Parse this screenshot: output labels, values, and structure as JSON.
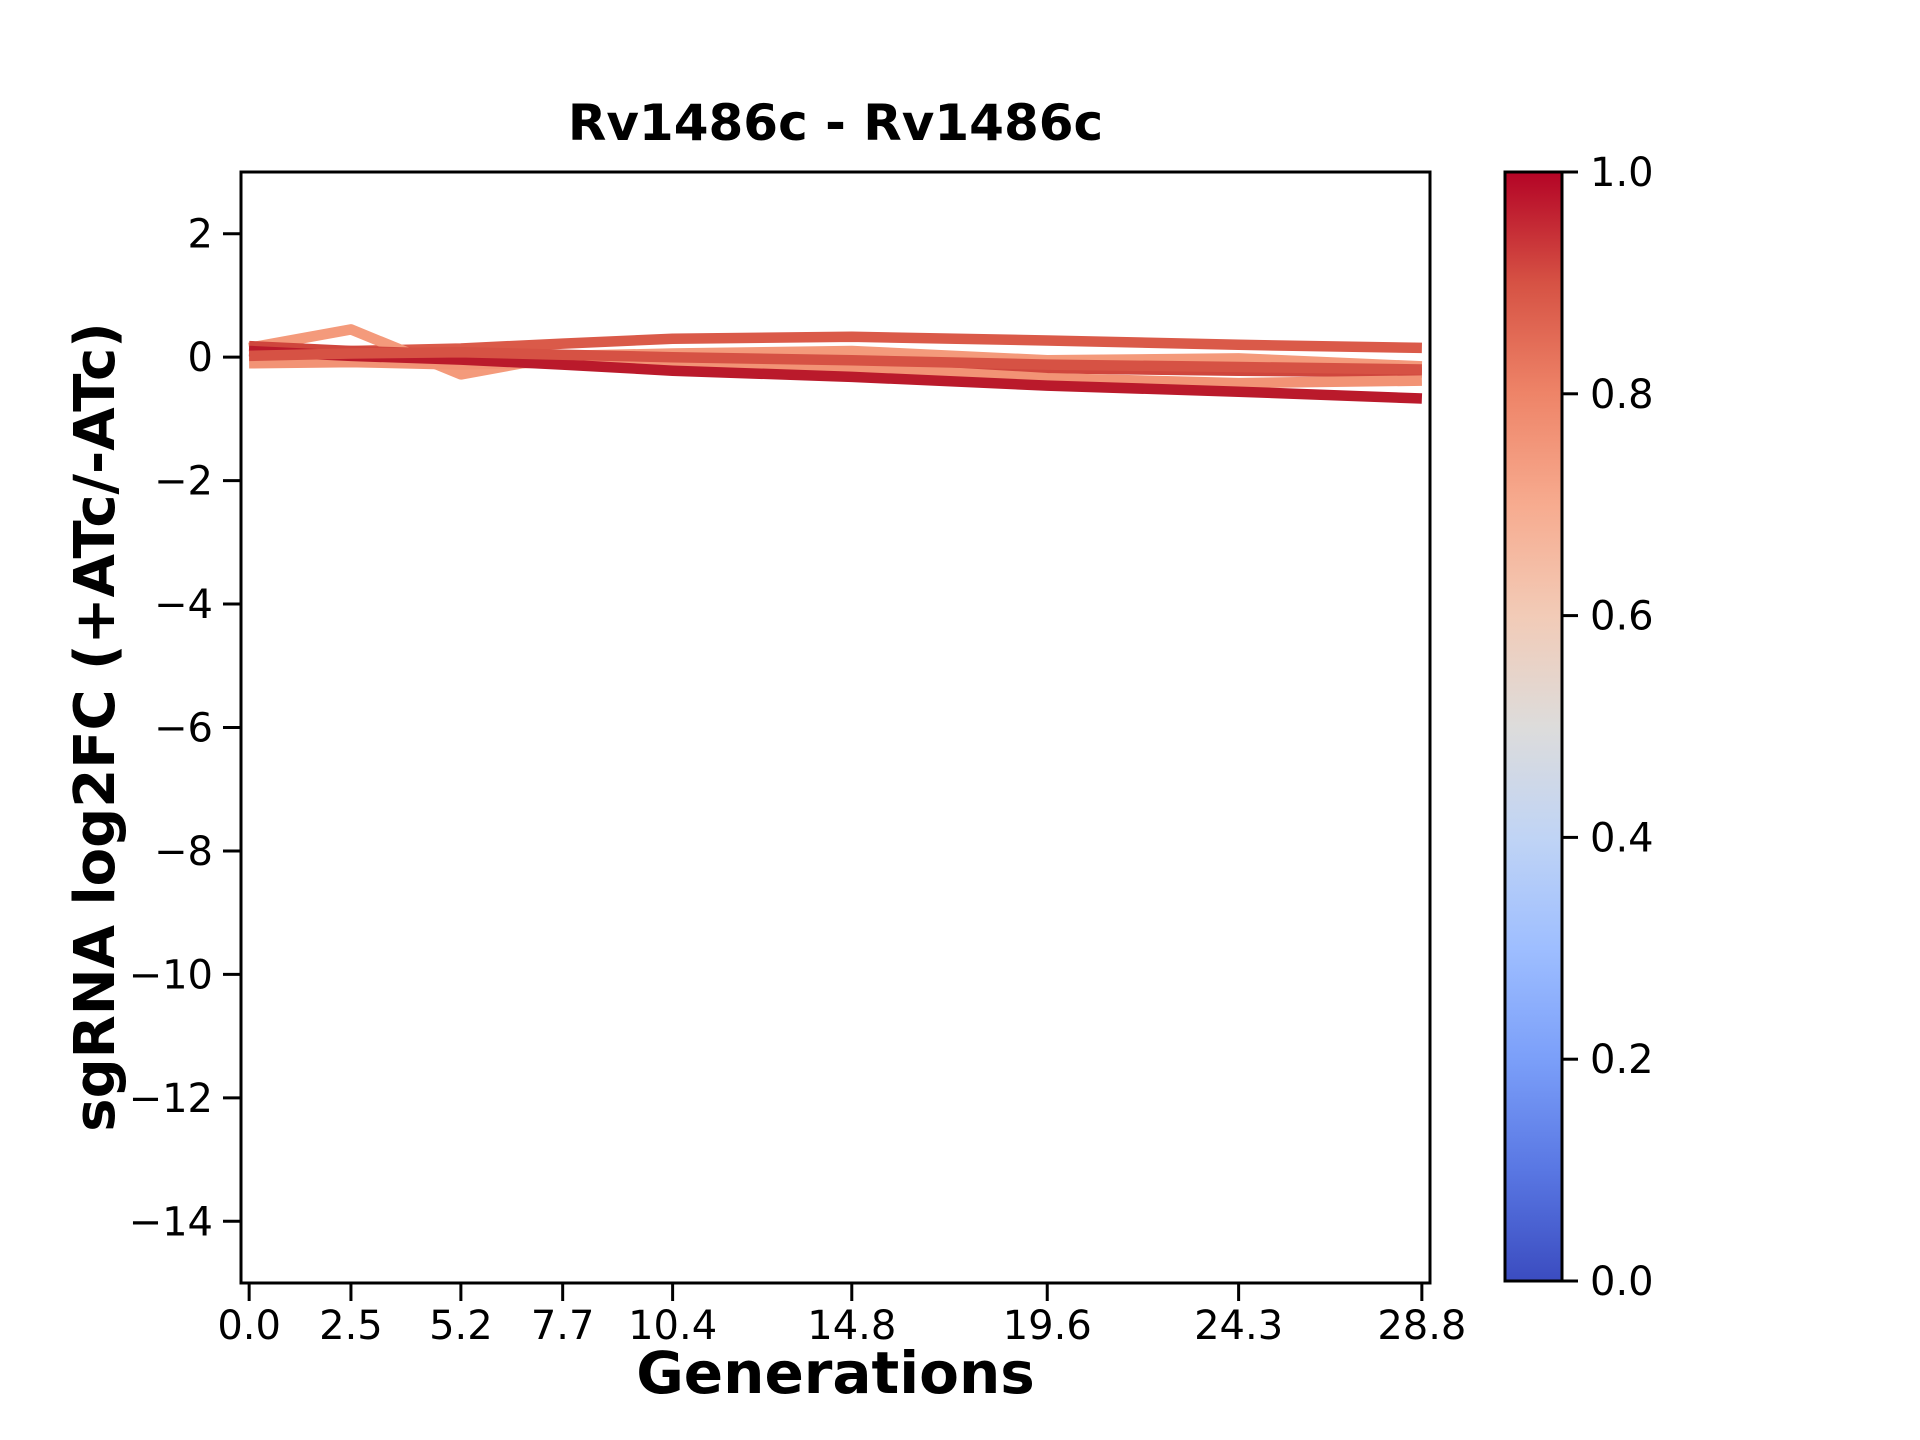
{
  "figure": {
    "title": "Rv1486c - Rv1486c",
    "xlabel": "Generations",
    "ylabel": "sgRNA log2FC (+ATc/-ATc)"
  },
  "chart_data": {
    "type": "line",
    "title": "Rv1486c - Rv1486c",
    "xlabel": "Generations",
    "ylabel": "sgRNA log2FC (+ATc/-ATc)",
    "grid": false,
    "legend": "none",
    "background": "#ffffff",
    "xlim": [
      -0.2,
      29.0
    ],
    "ylim": [
      -15,
      3
    ],
    "x": [
      0.0,
      2.5,
      5.2,
      7.7,
      10.4,
      14.8,
      19.6,
      24.3,
      28.8
    ],
    "x_ticks": [
      {
        "value": 0.0,
        "label": "0.0"
      },
      {
        "value": 2.5,
        "label": "2.5"
      },
      {
        "value": 5.2,
        "label": "5.2"
      },
      {
        "value": 7.7,
        "label": "7.7"
      },
      {
        "value": 10.4,
        "label": "10.4"
      },
      {
        "value": 14.8,
        "label": "14.8"
      },
      {
        "value": 19.6,
        "label": "19.6"
      },
      {
        "value": 24.3,
        "label": "24.3"
      },
      {
        "value": 28.8,
        "label": "28.8"
      }
    ],
    "y_ticks": [
      {
        "value": 2,
        "label": "2"
      },
      {
        "value": 0,
        "label": "0"
      },
      {
        "value": -2,
        "label": "−2"
      },
      {
        "value": -4,
        "label": "−4"
      },
      {
        "value": -6,
        "label": "−6"
      },
      {
        "value": -8,
        "label": "−8"
      },
      {
        "value": -10,
        "label": "−10"
      },
      {
        "value": -12,
        "label": "−12"
      },
      {
        "value": -14,
        "label": "−14"
      }
    ],
    "series": [
      {
        "name": "sgRNA line 1",
        "colormap_value": 0.88,
        "color": "#da5a49",
        "values": [
          0.08,
          0.1,
          0.14,
          0.22,
          0.3,
          0.33,
          0.27,
          0.2,
          0.15
        ]
      },
      {
        "name": "sgRNA line 2",
        "colormap_value": 0.75,
        "color": "#f49a7b",
        "values": [
          0.15,
          0.45,
          -0.28,
          0.02,
          0.06,
          0.1,
          -0.05,
          -0.02,
          -0.15
        ]
      },
      {
        "name": "sgRNA line 3",
        "colormap_value": 0.92,
        "color": "#cf463d",
        "values": [
          0.18,
          0.1,
          0.05,
          0.0,
          -0.04,
          -0.07,
          -0.18,
          -0.22,
          -0.25
        ]
      },
      {
        "name": "sgRNA line 4",
        "colormap_value": 0.77,
        "color": "#f29375",
        "values": [
          -0.1,
          -0.08,
          -0.12,
          -0.08,
          -0.12,
          -0.16,
          -0.34,
          -0.42,
          -0.38
        ]
      },
      {
        "name": "sgRNA line 5",
        "colormap_value": 0.98,
        "color": "#ba1a2b",
        "values": [
          0.1,
          0.02,
          -0.04,
          -0.12,
          -0.22,
          -0.32,
          -0.46,
          -0.56,
          -0.67
        ]
      },
      {
        "name": "sgRNA line 6",
        "colormap_value": 0.9,
        "color": "#d65244",
        "values": [
          0.02,
          0.06,
          0.08,
          0.04,
          0.0,
          -0.05,
          -0.12,
          -0.16,
          -0.2
        ]
      }
    ],
    "colorbar": {
      "colormap": "coolwarm",
      "range": [
        0.0,
        1.0
      ],
      "ticks": [
        {
          "value": 1.0,
          "label": "1.0"
        },
        {
          "value": 0.8,
          "label": "0.8"
        },
        {
          "value": 0.6,
          "label": "0.6"
        },
        {
          "value": 0.4,
          "label": "0.4"
        },
        {
          "value": 0.2,
          "label": "0.2"
        },
        {
          "value": 0.0,
          "label": "0.0"
        }
      ],
      "gradient": [
        {
          "offset": 0.0,
          "color": "#3b4cc0"
        },
        {
          "offset": 0.1,
          "color": "#5977e3"
        },
        {
          "offset": 0.2,
          "color": "#7b9ff9"
        },
        {
          "offset": 0.3,
          "color": "#9ebeff"
        },
        {
          "offset": 0.4,
          "color": "#c0d4f5"
        },
        {
          "offset": 0.5,
          "color": "#dddcdb"
        },
        {
          "offset": 0.6,
          "color": "#f2cbb7"
        },
        {
          "offset": 0.7,
          "color": "#f7ab8f"
        },
        {
          "offset": 0.8,
          "color": "#ee8468"
        },
        {
          "offset": 0.9,
          "color": "#d65244"
        },
        {
          "offset": 1.0,
          "color": "#b40426"
        }
      ]
    }
  }
}
